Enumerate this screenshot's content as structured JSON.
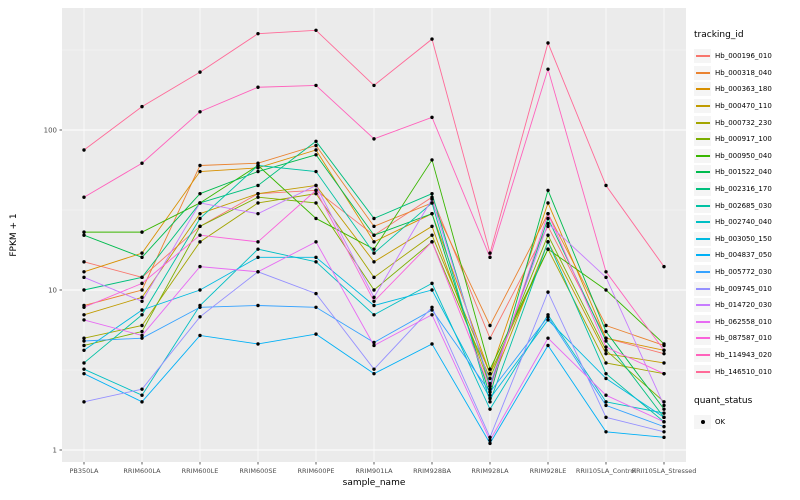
{
  "panel": {
    "bg": "#EBEBEB",
    "grid_major": "#FFFFFF",
    "grid_minor": "#F7F7F7",
    "tick_color": "#333333",
    "tick_label_color": "#4D4D4D",
    "point_color": "#000000"
  },
  "legend": {
    "color_title": "tracking_id",
    "shape_title": "quant_status",
    "shape_items": [
      {
        "label": "OK"
      }
    ]
  },
  "chart_data": {
    "type": "line",
    "title": "",
    "xlabel": "sample_name",
    "ylabel": "FPKM + 1",
    "y_scale": "log10",
    "y_ticks": [
      1,
      10,
      100
    ],
    "y_minor_ticks": [
      3.1623,
      31.623,
      316.23
    ],
    "ylim": [
      0.84,
      580
    ],
    "grid": true,
    "legend_position": "right",
    "categories": [
      "PB350LA",
      "RRIM600LA",
      "RRIM600LE",
      "RRIM600SE",
      "RRIM600PE",
      "RRIM901LA",
      "RRIM928BA",
      "RRIM928LA",
      "RRIM928LE",
      "RRII105LA_Control",
      "RRII105LA_Stressed"
    ],
    "series": [
      {
        "name": "Hb_000196_010",
        "color": "#F8766D",
        "values": [
          15,
          12,
          25,
          40,
          42,
          22,
          38,
          5,
          25,
          5,
          4
        ]
      },
      {
        "name": "Hb_000318_040",
        "color": "#EA8331",
        "values": [
          8,
          10,
          60,
          62,
          80,
          25,
          35,
          6,
          30,
          6,
          4.5
        ]
      },
      {
        "name": "Hb_000363_180",
        "color": "#D89000",
        "values": [
          13,
          17,
          55,
          58,
          75,
          20,
          30,
          3,
          35,
          5,
          4.2
        ]
      },
      {
        "name": "Hb_000470_110",
        "color": "#C09B00",
        "values": [
          7,
          9,
          30,
          40,
          45,
          15,
          25,
          2.5,
          20,
          4,
          3.5
        ]
      },
      {
        "name": "Hb_000732_230",
        "color": "#A3A500",
        "values": [
          5,
          6,
          20,
          35,
          40,
          12,
          22,
          3,
          18,
          3.5,
          3
        ]
      },
      {
        "name": "Hb_000917_100",
        "color": "#7CAE00",
        "values": [
          4.5,
          5.5,
          25,
          38,
          35,
          10,
          20,
          2.8,
          22,
          4.2,
          2
        ]
      },
      {
        "name": "Hb_000950_040",
        "color": "#39B600",
        "values": [
          23,
          23,
          35,
          60,
          28,
          18,
          65,
          3.2,
          18,
          10,
          4.6
        ]
      },
      {
        "name": "Hb_001522_040",
        "color": "#00BB4E",
        "values": [
          22,
          16,
          40,
          55,
          70,
          22,
          30,
          2.2,
          42,
          5.5,
          1.8
        ]
      },
      {
        "name": "Hb_002316_170",
        "color": "#00BF7D",
        "values": [
          10,
          12,
          35,
          45,
          85,
          28,
          40,
          2.5,
          28,
          4.8,
          1.6
        ]
      },
      {
        "name": "Hb_002685_030",
        "color": "#00C1A3",
        "values": [
          3.5,
          7,
          28,
          60,
          55,
          17,
          35,
          2,
          20,
          3,
          1.5
        ]
      },
      {
        "name": "Hb_002740_040",
        "color": "#00BFC4",
        "values": [
          3.2,
          2.2,
          8,
          18,
          15,
          7,
          11,
          1.8,
          7,
          2,
          1.7
        ]
      },
      {
        "name": "Hb_003050_150",
        "color": "#00BAE0",
        "values": [
          4.2,
          7.5,
          10,
          16,
          16,
          8,
          10,
          2.1,
          6.5,
          2.8,
          1.6
        ]
      },
      {
        "name": "Hb_004837_050",
        "color": "#00B0F6",
        "values": [
          3,
          2,
          5.2,
          4.6,
          5.3,
          3,
          4.6,
          1.1,
          4.5,
          1.3,
          1.2
        ]
      },
      {
        "name": "Hb_005772_030",
        "color": "#35A2FF",
        "values": [
          4.8,
          5,
          7.8,
          8,
          7.8,
          4.7,
          7.5,
          2.3,
          6.8,
          1.9,
          1.4
        ]
      },
      {
        "name": "Hb_009745_010",
        "color": "#9590FF",
        "values": [
          2,
          2.4,
          6.8,
          13,
          9.5,
          3.2,
          7.8,
          1.2,
          9.7,
          1.6,
          1.3
        ]
      },
      {
        "name": "Hb_014720_030",
        "color": "#C77CFF",
        "values": [
          12,
          8.5,
          35,
          30,
          45,
          9,
          37,
          2.6,
          26,
          12,
          1.9
        ]
      },
      {
        "name": "Hb_062558_010",
        "color": "#E76BF3",
        "values": [
          6.5,
          5.2,
          14,
          13,
          20,
          4.5,
          7,
          1.15,
          5,
          2.2,
          1.5
        ]
      },
      {
        "name": "Hb_087587_010",
        "color": "#FA62DB",
        "values": [
          7.8,
          11,
          22,
          20,
          42,
          8.5,
          20,
          2.4,
          30,
          4.4,
          3
        ]
      },
      {
        "name": "Hb_114943_020",
        "color": "#FF62BC",
        "values": [
          38,
          62,
          130,
          185,
          190,
          88,
          120,
          16,
          240,
          13,
          4.2
        ]
      },
      {
        "name": "Hb_146510_010",
        "color": "#FF6A98",
        "values": [
          75,
          140,
          230,
          400,
          420,
          190,
          370,
          17,
          350,
          45,
          14
        ]
      }
    ]
  }
}
